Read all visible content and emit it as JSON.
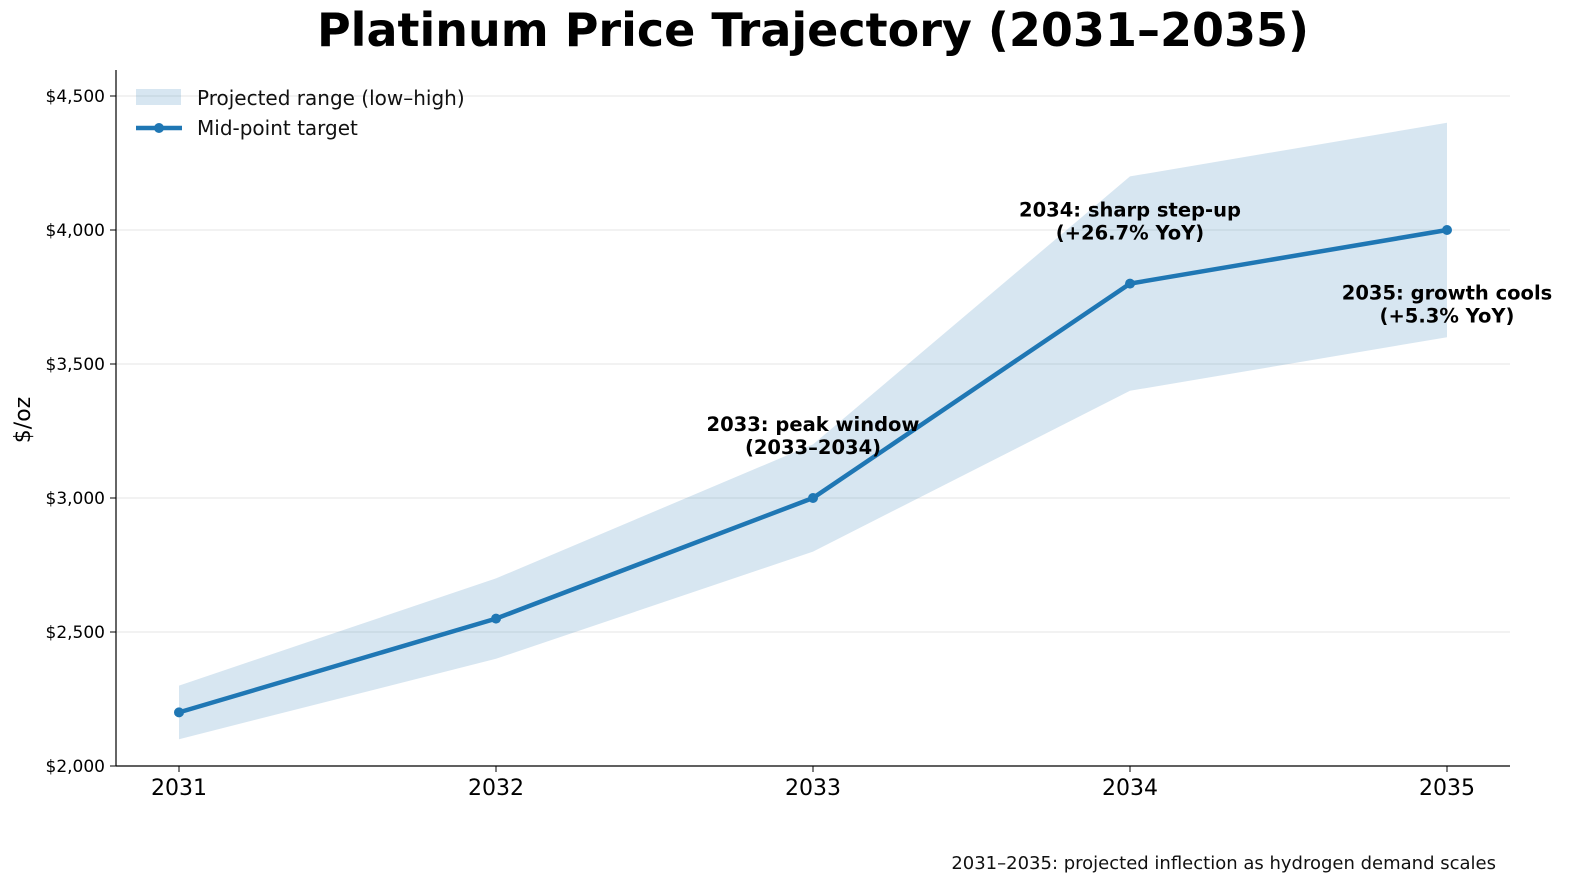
{
  "chart_data": {
    "type": "line",
    "title": "Platinum Price Trajectory (2031–2035)",
    "xlabel": "",
    "ylabel": "$/oz",
    "x": [
      2031,
      2032,
      2033,
      2034,
      2035
    ],
    "x_tick_labels": [
      "2031",
      "2032",
      "2033",
      "2034",
      "2035"
    ],
    "ylim": [
      2000,
      4600
    ],
    "y_ticks": [
      2000,
      2500,
      3000,
      3500,
      4000,
      4500
    ],
    "y_tick_labels": [
      "$2,000",
      "$2,500",
      "$3,000",
      "$3,500",
      "$4,000",
      "$4,500"
    ],
    "grid": "horizontal",
    "legend_position": "top-left",
    "series": [
      {
        "name": "Mid-point target",
        "kind": "line",
        "color": "#1f77b4",
        "values": [
          2200,
          2550,
          3000,
          3800,
          4000
        ]
      },
      {
        "name": "Projected range (low–high)",
        "kind": "band",
        "color": "#1f77b4",
        "opacity": 0.18,
        "low": [
          2100,
          2400,
          2800,
          3400,
          3600
        ],
        "high": [
          2300,
          2700,
          3200,
          4200,
          4400
        ]
      }
    ],
    "legend": [
      {
        "label": "Projected range (low–high)",
        "kind": "band"
      },
      {
        "label": "Mid-point target",
        "kind": "line"
      }
    ],
    "annotations": [
      {
        "x": 2033,
        "y": 3250,
        "lines": [
          "2033: peak window",
          "(2033–2034)"
        ]
      },
      {
        "x": 2034,
        "y": 4050,
        "lines": [
          "2034: sharp step-up",
          "(+26.7% YoY)"
        ]
      },
      {
        "x": 2035,
        "y": 3740,
        "lines": [
          "2035: growth cools",
          "(+5.3% YoY)"
        ]
      }
    ],
    "footnote": "2031–2035: projected inflection as hydrogen demand scales"
  }
}
